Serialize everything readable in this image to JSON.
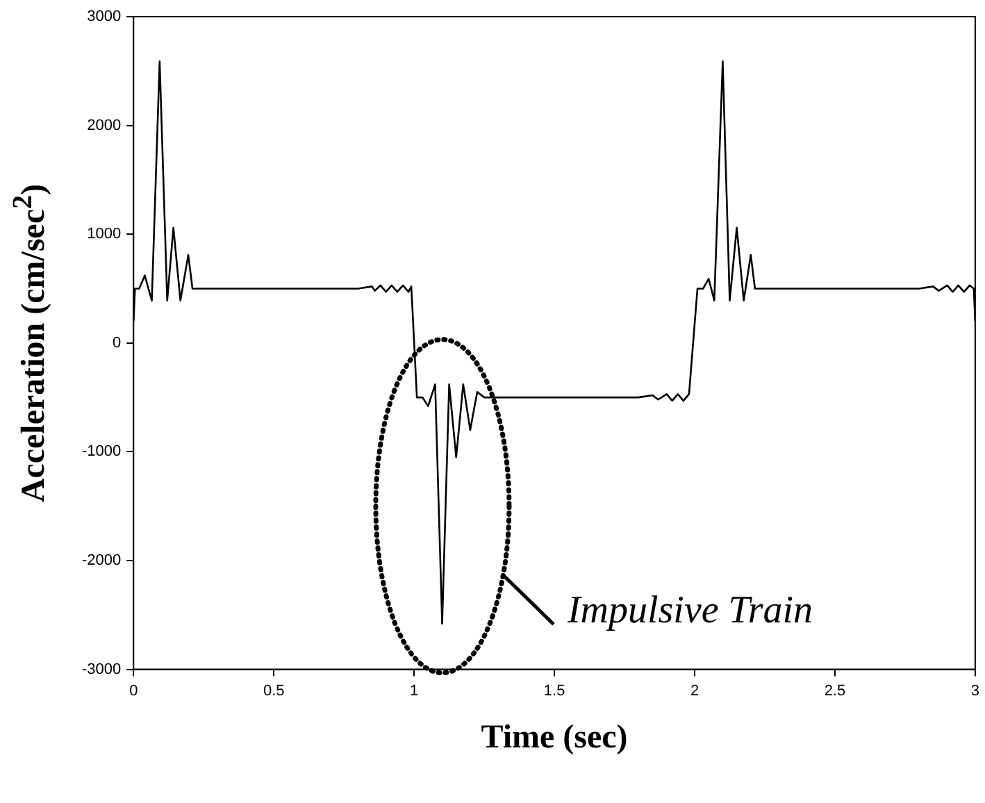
{
  "chart_data": {
    "type": "line",
    "xlabel": "Time (sec)",
    "ylabel": "Acceleration (cm/sec$^{2}$)",
    "x": [
      0,
      0.005,
      0.02,
      0.04,
      0.065,
      0.093,
      0.12,
      0.142,
      0.167,
      0.195,
      0.21,
      0.5,
      0.8,
      0.85,
      0.86,
      0.88,
      0.9,
      0.92,
      0.94,
      0.96,
      0.98,
      0.99,
      1.01,
      1.03,
      1.05,
      1.075,
      1.1,
      1.125,
      1.15,
      1.175,
      1.2,
      1.225,
      1.25,
      1.5,
      1.8,
      1.85,
      1.87,
      1.9,
      1.92,
      1.94,
      1.96,
      1.98,
      2.01,
      2.03,
      2.05,
      2.07,
      2.1,
      2.125,
      2.15,
      2.175,
      2.2,
      2.215,
      2.5,
      2.8,
      2.85,
      2.87,
      2.9,
      2.92,
      2.94,
      2.96,
      2.98,
      2.995,
      3
    ],
    "series": [
      {
        "color": "#000000",
        "values": [
          200,
          500,
          500,
          620,
          390,
          2590,
          390,
          1060,
          390,
          810,
          500,
          500,
          500,
          520,
          480,
          530,
          470,
          530,
          470,
          530,
          470,
          520,
          -500,
          -500,
          -580,
          -380,
          -2580,
          -380,
          -1050,
          -380,
          -800,
          -450,
          -500,
          -500,
          -500,
          -480,
          -520,
          -470,
          -530,
          -470,
          -530,
          -470,
          500,
          500,
          590,
          390,
          2590,
          390,
          1060,
          390,
          810,
          500,
          500,
          500,
          520,
          480,
          530,
          470,
          530,
          470,
          530,
          500,
          200
        ]
      }
    ],
    "xlim": [
      0,
      3
    ],
    "xticks": [
      0,
      {
        "value": 0.5,
        "label": "0.5"
      },
      1,
      {
        "value": 1.5,
        "label": "1.5"
      },
      2,
      {
        "value": 2.5,
        "label": "2.5"
      },
      3
    ],
    "ylim": [
      -3000,
      3000
    ],
    "yticks": [
      -3000,
      -2000,
      -1000,
      0,
      1000,
      2000,
      3000
    ],
    "annotations": [
      "Impulsive Train"
    ],
    "grid": false,
    "legend": false,
    "marker": "none",
    "line_style": "solid"
  }
}
